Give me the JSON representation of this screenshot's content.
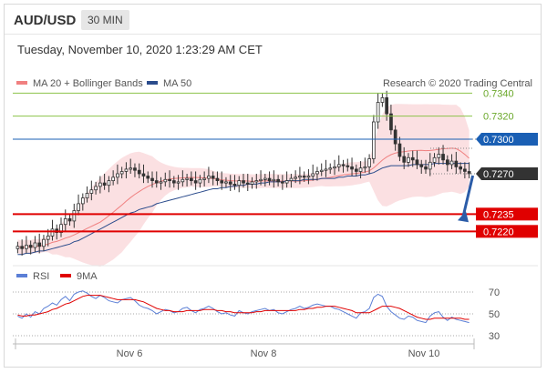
{
  "header": {
    "symbol": "AUD/USD",
    "timeframe": "30 MIN"
  },
  "timestamp": "Tuesday, November 10, 2020 1:23:29 AM CET",
  "credit": "Research © 2020 Trading Central",
  "colors": {
    "resistance": "#8bc34a",
    "pivot": "#1a5fb4",
    "support": "#e00000",
    "candle_up": "#ffffff",
    "candle_down": "#333333",
    "bollinger": "#fadadd",
    "ma20": "#f08080",
    "ma50": "#2b4c8c",
    "rsi": "#5b7fd6",
    "rsi_ma": "#e00000",
    "arrow": "#2b5ca8"
  },
  "chart_data": [
    {
      "type": "candlestick",
      "legend": [
        {
          "name": "MA 20 + Bollinger Bands",
          "color": "#f08080"
        },
        {
          "name": "MA 50",
          "color": "#2b4c8c"
        }
      ],
      "x_ticks": [
        "Nov 6",
        "Nov 8",
        "Nov 10"
      ],
      "ylim": [
        0.7195,
        0.7345
      ],
      "levels": [
        {
          "label": "0.7340",
          "value": 0.734,
          "kind": "resistance"
        },
        {
          "label": "0.7320",
          "value": 0.732,
          "kind": "resistance"
        },
        {
          "label": "0.7300",
          "value": 0.73,
          "kind": "pivot"
        },
        {
          "label": "0.7270",
          "value": 0.727,
          "kind": "last"
        },
        {
          "label": "0.7235",
          "value": 0.7235,
          "kind": "support"
        },
        {
          "label": "0.7220",
          "value": 0.722,
          "kind": "support"
        }
      ],
      "close_series": [
        0.7207,
        0.7205,
        0.7208,
        0.7206,
        0.721,
        0.7207,
        0.7213,
        0.7216,
        0.7222,
        0.7219,
        0.7226,
        0.7231,
        0.7229,
        0.7238,
        0.7244,
        0.7249,
        0.7253,
        0.7256,
        0.7259,
        0.7262,
        0.726,
        0.7264,
        0.7267,
        0.727,
        0.7272,
        0.7274,
        0.7275,
        0.7273,
        0.727,
        0.7268,
        0.7266,
        0.7264,
        0.7262,
        0.7263,
        0.7265,
        0.7264,
        0.7262,
        0.7263,
        0.7265,
        0.7266,
        0.7264,
        0.7262,
        0.7265,
        0.7266,
        0.7268,
        0.7266,
        0.7264,
        0.7262,
        0.7263,
        0.7261,
        0.726,
        0.7264,
        0.7262,
        0.7261,
        0.7263,
        0.7264,
        0.7265,
        0.7266,
        0.7264,
        0.7265,
        0.7263,
        0.7262,
        0.7264,
        0.7266,
        0.7267,
        0.7268,
        0.7267,
        0.7268,
        0.727,
        0.7272,
        0.7273,
        0.7274,
        0.7275,
        0.7276,
        0.7278,
        0.7277,
        0.7276,
        0.7274,
        0.7272,
        0.7275,
        0.7276,
        0.7283,
        0.7315,
        0.7332,
        0.7336,
        0.7322,
        0.7308,
        0.7296,
        0.7285,
        0.728,
        0.7284,
        0.7282,
        0.7278,
        0.7276,
        0.7274,
        0.728,
        0.7284,
        0.7287,
        0.7282,
        0.7278,
        0.7281,
        0.7276,
        0.7274,
        0.7272,
        0.727
      ],
      "ma50_series": [
        0.72,
        0.72,
        0.7201,
        0.7201,
        0.7202,
        0.7203,
        0.7203,
        0.7204,
        0.7205,
        0.7206,
        0.7207,
        0.7208,
        0.7209,
        0.7211,
        0.7212,
        0.7214,
        0.7216,
        0.7218,
        0.722,
        0.7222,
        0.7224,
        0.7226,
        0.7228,
        0.723,
        0.7232,
        0.7234,
        0.7236,
        0.7237,
        0.7239,
        0.724,
        0.7241,
        0.7242,
        0.7244,
        0.7245,
        0.7246,
        0.7247,
        0.7248,
        0.7249,
        0.725,
        0.7251,
        0.7252,
        0.7253,
        0.7254,
        0.7255,
        0.7256,
        0.7257,
        0.7257,
        0.7258,
        0.7258,
        0.7259,
        0.7259,
        0.726,
        0.726,
        0.7261,
        0.7261,
        0.7261,
        0.7262,
        0.7262,
        0.7263,
        0.7263,
        0.7263,
        0.7263,
        0.7264,
        0.7264,
        0.7264,
        0.7264,
        0.7265,
        0.7265,
        0.7265,
        0.7265,
        0.7266,
        0.7266,
        0.7266,
        0.7266,
        0.7267,
        0.7267,
        0.7268,
        0.7268,
        0.7268,
        0.7269,
        0.7269,
        0.727,
        0.7271,
        0.7273,
        0.7275,
        0.7276,
        0.7277,
        0.7277,
        0.7277,
        0.7277,
        0.7277,
        0.7278,
        0.7278,
        0.7278,
        0.7278,
        0.7278,
        0.7279,
        0.7279,
        0.7279,
        0.7279,
        0.7279,
        0.7279,
        0.7279,
        0.7279,
        0.7279
      ]
    },
    {
      "type": "line",
      "legend": [
        {
          "name": "RSI",
          "color": "#5b7fd6"
        },
        {
          "name": "9MA",
          "color": "#e00000"
        }
      ],
      "y_ticks": [
        "70",
        "50",
        "30"
      ],
      "ylim": [
        25,
        75
      ],
      "reference_lines": [
        70,
        50,
        30
      ],
      "rsi": [
        48,
        46,
        50,
        47,
        52,
        50,
        55,
        57,
        60,
        58,
        63,
        66,
        62,
        68,
        70,
        71,
        69,
        66,
        64,
        67,
        65,
        62,
        61,
        60,
        63,
        64,
        65,
        62,
        58,
        56,
        55,
        53,
        50,
        52,
        54,
        53,
        51,
        52,
        55,
        56,
        53,
        51,
        54,
        55,
        57,
        55,
        52,
        50,
        51,
        49,
        48,
        53,
        51,
        50,
        52,
        53,
        54,
        55,
        53,
        54,
        51,
        50,
        52,
        54,
        55,
        57,
        55,
        56,
        58,
        59,
        58,
        57,
        57,
        55,
        54,
        52,
        50,
        48,
        46,
        51,
        52,
        55,
        65,
        68,
        66,
        57,
        52,
        49,
        46,
        45,
        48,
        47,
        44,
        43,
        42,
        48,
        51,
        52,
        47,
        44,
        47,
        45,
        44,
        43,
        42
      ],
      "ma9": [
        49,
        48,
        48,
        49,
        49,
        50,
        51,
        52,
        54,
        55,
        57,
        59,
        60,
        62,
        64,
        66,
        67,
        67,
        67,
        67,
        66,
        65,
        64,
        63,
        63,
        63,
        63,
        63,
        62,
        61,
        59,
        57,
        55,
        54,
        53,
        53,
        52,
        52,
        52,
        53,
        53,
        53,
        53,
        54,
        54,
        54,
        53,
        53,
        52,
        52,
        51,
        51,
        51,
        51,
        51,
        52,
        52,
        53,
        53,
        53,
        53,
        53,
        53,
        53,
        53,
        54,
        54,
        55,
        55,
        56,
        56,
        57,
        57,
        57,
        56,
        55,
        54,
        53,
        51,
        51,
        51,
        51,
        53,
        55,
        57,
        57,
        57,
        56,
        55,
        53,
        51,
        49,
        47,
        46,
        45,
        45,
        46,
        46,
        46,
        46,
        46,
        46,
        46,
        45,
        45
      ]
    }
  ]
}
